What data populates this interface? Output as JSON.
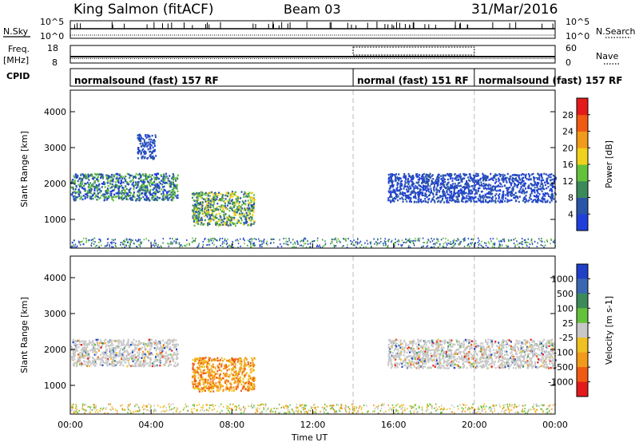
{
  "header": {
    "site": "King Salmon (fitACF)",
    "beam": "Beam 03",
    "date": "31/Mar/2016"
  },
  "small_panels": {
    "nsky_label": "N.Sky",
    "nsky_top": "10^5",
    "nsky_bottom": "10^0",
    "nsearch_label": "N.Search",
    "nsearch_top": "10^5",
    "nsearch_bottom": "10^0",
    "freq_label_1": "Freq.",
    "freq_label_2": "[MHz]",
    "freq_top": "18",
    "freq_bottom": "8",
    "nave_label": "Nave",
    "nave_top": "60",
    "nave_bottom": "0",
    "cpid_label": "CPID"
  },
  "cpid_segments": [
    {
      "label": "normalsound (fast) 157 RF",
      "start_hour": 0,
      "end_hour": 14
    },
    {
      "label": "normal (fast) 151 RF",
      "start_hour": 14,
      "end_hour": 20
    },
    {
      "label": "normalsound (fast) 157 RF",
      "start_hour": 20,
      "end_hour": 24
    }
  ],
  "chart_data": [
    {
      "type": "heatmap",
      "ylabel": "Slant Range [km]",
      "xlabel": "Time UT",
      "xlim": [
        0,
        24
      ],
      "ylim": [
        200,
        4600
      ],
      "x_ticks": [
        "00:00",
        "04:00",
        "08:00",
        "12:00",
        "16:00",
        "20:00",
        "00:00"
      ],
      "y_ticks": [
        1000,
        2000,
        3000,
        4000
      ],
      "colorbar_label": "Power [dB]",
      "colorbar_ticks": [
        "4",
        "8",
        "12",
        "16",
        "20",
        "24",
        "28"
      ],
      "colorbar_colors": [
        "#1f3fdc",
        "#2a54a8",
        "#3c8a5a",
        "#63c23a",
        "#f0d21c",
        "#f29a1a",
        "#f05a12",
        "#e41a1a"
      ],
      "regions": [
        {
          "t0": 0.0,
          "t1": 5.3,
          "r0": 1550,
          "r1": 2300,
          "level": "medium"
        },
        {
          "t0": 3.3,
          "t1": 4.2,
          "r0": 2700,
          "r1": 3400,
          "level": "low"
        },
        {
          "t0": 6.0,
          "t1": 9.1,
          "r0": 850,
          "r1": 1800,
          "level": "high"
        },
        {
          "t0": 15.7,
          "t1": 24.0,
          "r0": 1500,
          "r1": 2300,
          "level": "low"
        }
      ]
    },
    {
      "type": "heatmap",
      "ylabel": "Slant Range [km]",
      "xlabel": "Time UT",
      "xlim": [
        0,
        24
      ],
      "ylim": [
        200,
        4600
      ],
      "x_ticks": [
        "00:00",
        "04:00",
        "08:00",
        "12:00",
        "16:00",
        "20:00",
        "00:00"
      ],
      "y_ticks": [
        1000,
        2000,
        3000,
        4000
      ],
      "colorbar_label": "Velocity [m s-1]",
      "colorbar_ticks": [
        "1000",
        "500",
        "100",
        "25",
        "-25",
        "-100",
        "-500",
        "-1000"
      ],
      "colorbar_colors": [
        "#2040c8",
        "#3a68b0",
        "#3c8a5a",
        "#63c23a",
        "#c8c8c8",
        "#f0c020",
        "#f29a1a",
        "#f05a12",
        "#e41a1a"
      ],
      "regions": [
        {
          "t0": 0.0,
          "t1": 5.3,
          "r0": 1550,
          "r1": 2300,
          "level": "near-zero"
        },
        {
          "t0": 6.0,
          "t1": 9.1,
          "r0": 850,
          "r1": 1800,
          "level": "negative"
        },
        {
          "t0": 15.7,
          "t1": 24.0,
          "r0": 1500,
          "r1": 2300,
          "level": "near-zero"
        }
      ]
    }
  ]
}
